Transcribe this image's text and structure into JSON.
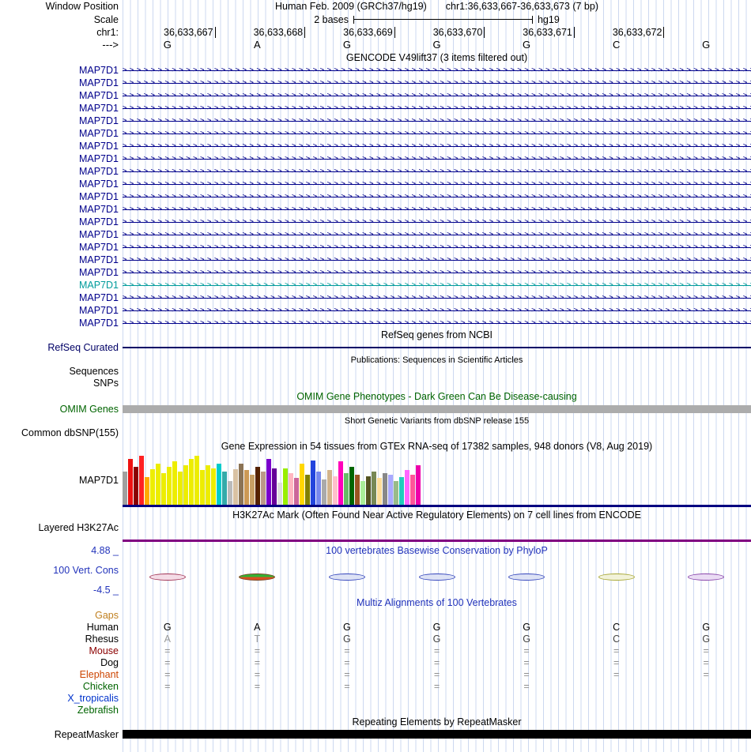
{
  "header": {
    "window_position_label": "Window Position",
    "assembly": "Human Feb. 2009 (GRCh37/hg19)",
    "position": "chr1:36,633,667-36,633,673 (7 bp)"
  },
  "scale": {
    "label": "Scale",
    "value": "2 bases",
    "genome": "hg19"
  },
  "ruler": {
    "chrom_label": "chr1:",
    "coordinates": [
      "36,633,667",
      "36,633,668",
      "36,633,669",
      "36,633,670",
      "36,633,671",
      "36,633,672"
    ],
    "strand_label": "--->",
    "bases": [
      "G",
      "A",
      "G",
      "G",
      "G",
      "C",
      "G"
    ]
  },
  "gencode": {
    "title": "GENCODE V49lift37 (3 items filtered out)",
    "arrow_char": ">",
    "arrow_repeat": 150,
    "transcripts": [
      {
        "label": "MAP7D1",
        "color": "#00008B"
      },
      {
        "label": "MAP7D1",
        "color": "#00008B"
      },
      {
        "label": "MAP7D1",
        "color": "#00008B"
      },
      {
        "label": "MAP7D1",
        "color": "#00008B"
      },
      {
        "label": "MAP7D1",
        "color": "#00008B"
      },
      {
        "label": "MAP7D1",
        "color": "#00008B"
      },
      {
        "label": "MAP7D1",
        "color": "#00008B"
      },
      {
        "label": "MAP7D1",
        "color": "#00008B"
      },
      {
        "label": "MAP7D1",
        "color": "#00008B"
      },
      {
        "label": "MAP7D1",
        "color": "#00008B"
      },
      {
        "label": "MAP7D1",
        "color": "#00008B"
      },
      {
        "label": "MAP7D1",
        "color": "#00008B"
      },
      {
        "label": "MAP7D1",
        "color": "#00008B"
      },
      {
        "label": "MAP7D1",
        "color": "#00008B"
      },
      {
        "label": "MAP7D1",
        "color": "#00008B"
      },
      {
        "label": "MAP7D1",
        "color": "#00008B"
      },
      {
        "label": "MAP7D1",
        "color": "#00008B"
      },
      {
        "label": "MAP7D1",
        "color": "#009B9B"
      },
      {
        "label": "MAP7D1",
        "color": "#00008B"
      },
      {
        "label": "MAP7D1",
        "color": "#00008B"
      },
      {
        "label": "MAP7D1",
        "color": "#00008B"
      }
    ]
  },
  "refseq": {
    "title": "RefSeq genes from NCBI",
    "label": "RefSeq Curated",
    "label_color": "#000066",
    "line_color": "#000066"
  },
  "publications": {
    "title": "Publications: Sequences in Scientific Articles",
    "sequences_label": "Sequences",
    "snps_label": "SNPs"
  },
  "omim": {
    "title": "OMIM Gene Phenotypes - Dark Green Can Be Disease-causing",
    "label": "OMIM Genes",
    "text_color": "#006400",
    "bar_color": "#ACACAC"
  },
  "dbsnp": {
    "title": "Short Genetic Variants from dbSNP release 155",
    "label": "Common dbSNP(155)"
  },
  "gtex": {
    "title": "Gene Expression in 54 tissues from GTEx RNA-seq of 17382 samples, 948 donors (V8, Aug 2019)",
    "label": "MAP7D1",
    "baseline_color": "#000080",
    "colors": [
      "#A0A0A0",
      "#EE1111",
      "#8B0000",
      "#FF2222",
      "#FFAA00",
      "#EDED00",
      "#EDED00",
      "#EDED00",
      "#EDED00",
      "#EDED00",
      "#EDED00",
      "#EDED00",
      "#EDED00",
      "#EDED00",
      "#EDED00",
      "#EDED00",
      "#EDED00",
      "#00CCCC",
      "#33AAAA",
      "#BBBBBB",
      "#D9C2A3",
      "#8B7355",
      "#CC9955",
      "#C8A064",
      "#552200",
      "#BB9988",
      "#7A00CC",
      "#660099",
      "#DDDDDD",
      "#99EE00",
      "#FFB6C1",
      "#CC6699",
      "#FFD700",
      "#808000",
      "#2244DD",
      "#7788EE",
      "#AAAAAA",
      "#D2B48C",
      "#FFC0CB",
      "#FF00BB",
      "#66BB66",
      "#006600",
      "#995522",
      "#AAEE99",
      "#555522",
      "#778855",
      "#FFDD99",
      "#888888",
      "#AAAAFF",
      "#99BB88",
      "#22CCBB",
      "#FF66FF",
      "#FF5599",
      "#EE00AA"
    ],
    "heights": [
      42,
      58,
      48,
      62,
      35,
      45,
      52,
      40,
      48,
      55,
      42,
      50,
      58,
      62,
      44,
      50,
      46,
      52,
      42,
      30,
      45,
      52,
      44,
      38,
      48,
      42,
      58,
      46,
      28,
      46,
      40,
      34,
      52,
      38,
      56,
      42,
      32,
      44,
      36,
      55,
      40,
      48,
      38,
      30,
      36,
      42,
      34,
      40,
      38,
      30,
      35,
      44,
      38,
      50
    ]
  },
  "h3k27ac": {
    "title": "H3K27Ac Mark (Often Found Near Active Regulatory Elements) on 7 cell lines from ENCODE",
    "label": "Layered H3K27Ac",
    "line_color": "#800080"
  },
  "phylop": {
    "title": "100 vertebrates Basewise Conservation by PhyloP",
    "label": "100 Vert. Cons",
    "max_label": "4.88 _",
    "min_label": "-4.5 _",
    "text_color": "#2233BB",
    "lenses": [
      {
        "border": "#A03355",
        "fill": "#F4DCE6"
      },
      {
        "border": "#7A4422",
        "fill_top": "#33B233",
        "fill_bottom": "#D94F22"
      },
      {
        "border": "#3344BB",
        "fill": "#DDE2F5"
      },
      {
        "border": "#3344BB",
        "fill": "#DDE2F5"
      },
      {
        "border": "#3344BB",
        "fill": "#DDE2F5"
      },
      {
        "border": "#A6A633",
        "fill": "#F2F2D9"
      },
      {
        "border": "#8844AA",
        "fill": "#EADCF4"
      }
    ]
  },
  "multiz": {
    "title": "Multiz Alignments of 100 Vertebrates",
    "text_color": "#2233BB",
    "rows": [
      {
        "label": "Gaps",
        "label_color": "#C08020",
        "cells": [
          "",
          "",
          "",
          "",
          "",
          "",
          ""
        ]
      },
      {
        "label": "Human",
        "label_color": "#000000",
        "cell_color": "#000000",
        "cells": [
          "G",
          "A",
          "G",
          "G",
          "G",
          "C",
          "G"
        ]
      },
      {
        "label": "Rhesus",
        "label_color": "#000000",
        "cells": [
          "A",
          "T",
          "G",
          "G",
          "G",
          "C",
          "G"
        ],
        "cell_colors": [
          "#999999",
          "#999999",
          "#444444",
          "#444444",
          "#444444",
          "#444444",
          "#444444"
        ]
      },
      {
        "label": "Mouse",
        "label_color": "#8B0000",
        "cell_color": "#909090",
        "cells": [
          "=",
          "=",
          "=",
          "=",
          "=",
          "=",
          "="
        ]
      },
      {
        "label": "Dog",
        "label_color": "#000000",
        "cell_color": "#909090",
        "cells": [
          "=",
          "=",
          "=",
          "=",
          "=",
          "=",
          "="
        ]
      },
      {
        "label": "Elephant",
        "label_color": "#CC4400",
        "cell_color": "#909090",
        "cells": [
          "=",
          "=",
          "=",
          "=",
          "=",
          "=",
          "="
        ]
      },
      {
        "label": "Chicken",
        "label_color": "#006400",
        "cell_color": "#909090",
        "cells": [
          "=",
          "=",
          "=",
          "=",
          "=",
          "",
          ""
        ]
      },
      {
        "label": "X_tropicalis",
        "label_color": "#0033CC",
        "cells": [
          "",
          "",
          "",
          "",
          "",
          "",
          ""
        ]
      },
      {
        "label": "Zebrafish",
        "label_color": "#006400",
        "cells": [
          "",
          "",
          "",
          "",
          "",
          "",
          ""
        ]
      }
    ]
  },
  "repeatmasker": {
    "title": "Repeating Elements by RepeatMasker",
    "label": "RepeatMasker",
    "bar_color": "#000000"
  }
}
